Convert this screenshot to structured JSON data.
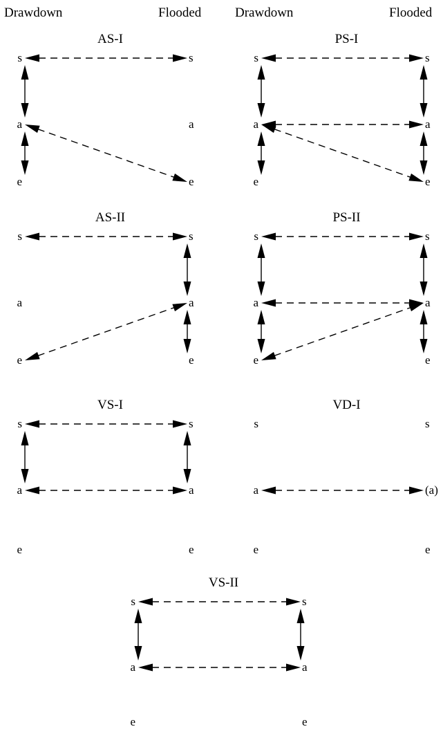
{
  "headers": {
    "left": {
      "drawdown": "Drawdown",
      "flooded": "Flooded"
    },
    "right": {
      "drawdown": "Drawdown",
      "flooded": "Flooded"
    }
  },
  "panels": [
    {
      "title": "AS-I",
      "left_nodes": [
        "s",
        "a",
        "e"
      ],
      "right_nodes": [
        "s",
        "a",
        "e"
      ],
      "links": [
        {
          "from": "Ls",
          "to": "Rs",
          "style": "dashed"
        },
        {
          "from": "Ls",
          "to": "La",
          "style": "solid"
        },
        {
          "from": "La",
          "to": "Le",
          "style": "solid"
        },
        {
          "from": "La",
          "to": "Re",
          "style": "dashed"
        }
      ]
    },
    {
      "title": "PS-I",
      "left_nodes": [
        "s",
        "a",
        "e"
      ],
      "right_nodes": [
        "s",
        "a",
        "e"
      ],
      "links": [
        {
          "from": "Ls",
          "to": "Rs",
          "style": "dashed"
        },
        {
          "from": "La",
          "to": "Ra",
          "style": "dashed"
        },
        {
          "from": "La",
          "to": "Re",
          "style": "dashed"
        },
        {
          "from": "Ls",
          "to": "La",
          "style": "solid"
        },
        {
          "from": "La",
          "to": "Le",
          "style": "solid"
        },
        {
          "from": "Rs",
          "to": "Ra",
          "style": "solid"
        },
        {
          "from": "Ra",
          "to": "Re",
          "style": "solid"
        }
      ]
    },
    {
      "title": "AS-II",
      "left_nodes": [
        "s",
        "a",
        "e"
      ],
      "right_nodes": [
        "s",
        "a",
        "e"
      ],
      "links": [
        {
          "from": "Ls",
          "to": "Rs",
          "style": "dashed"
        },
        {
          "from": "Rs",
          "to": "Ra",
          "style": "solid"
        },
        {
          "from": "Ra",
          "to": "Re",
          "style": "solid"
        },
        {
          "from": "Le",
          "to": "Ra",
          "style": "dashed"
        }
      ]
    },
    {
      "title": "PS-II",
      "left_nodes": [
        "s",
        "a",
        "e"
      ],
      "right_nodes": [
        "s",
        "a",
        "e"
      ],
      "links": [
        {
          "from": "Ls",
          "to": "Rs",
          "style": "dashed"
        },
        {
          "from": "La",
          "to": "Ra",
          "style": "dashed"
        },
        {
          "from": "Le",
          "to": "Ra",
          "style": "dashed"
        },
        {
          "from": "Ls",
          "to": "La",
          "style": "solid"
        },
        {
          "from": "La",
          "to": "Le",
          "style": "solid"
        },
        {
          "from": "Rs",
          "to": "Ra",
          "style": "solid"
        },
        {
          "from": "Ra",
          "to": "Re",
          "style": "solid"
        }
      ]
    },
    {
      "title": "VS-I",
      "left_nodes": [
        "s",
        "a",
        "e"
      ],
      "right_nodes": [
        "s",
        "a",
        "e"
      ],
      "links": [
        {
          "from": "Ls",
          "to": "Rs",
          "style": "dashed"
        },
        {
          "from": "La",
          "to": "Ra",
          "style": "dashed"
        },
        {
          "from": "Ls",
          "to": "La",
          "style": "solid"
        },
        {
          "from": "Rs",
          "to": "Ra",
          "style": "solid"
        }
      ]
    },
    {
      "title": "VD-I",
      "left_nodes": [
        "s",
        "a",
        "e"
      ],
      "right_nodes": [
        "s",
        "(a)",
        "e"
      ],
      "links": [
        {
          "from": "La",
          "to": "Ra",
          "style": "dashed"
        }
      ]
    },
    {
      "title": "VS-II",
      "left_nodes": [
        "s",
        "a",
        "e"
      ],
      "right_nodes": [
        "s",
        "a",
        "e"
      ],
      "links": [
        {
          "from": "Ls",
          "to": "Rs",
          "style": "dashed"
        },
        {
          "from": "La",
          "to": "Ra",
          "style": "dashed"
        },
        {
          "from": "Ls",
          "to": "La",
          "style": "solid"
        },
        {
          "from": "Rs",
          "to": "Ra",
          "style": "solid"
        }
      ]
    }
  ]
}
